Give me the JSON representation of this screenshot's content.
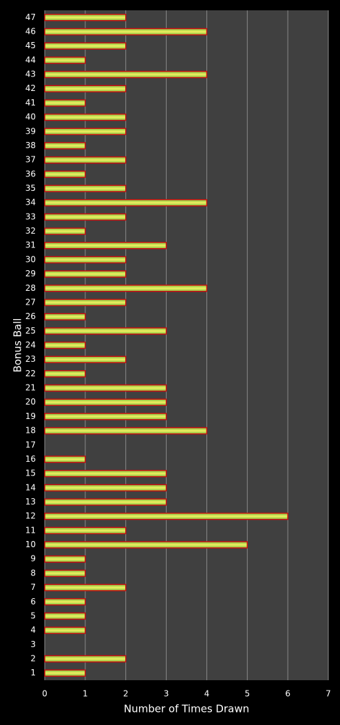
{
  "chart_data": {
    "type": "hbar",
    "x_label": "Number of Times Drawn",
    "y_label": "Bonus Ball",
    "categories": [
      "1",
      "2",
      "3",
      "4",
      "5",
      "6",
      "7",
      "8",
      "9",
      "10",
      "11",
      "12",
      "13",
      "14",
      "15",
      "16",
      "17",
      "18",
      "19",
      "20",
      "21",
      "22",
      "23",
      "24",
      "25",
      "26",
      "27",
      "28",
      "29",
      "30",
      "31",
      "32",
      "33",
      "34",
      "35",
      "36",
      "37",
      "38",
      "39",
      "40",
      "41",
      "42",
      "43",
      "44",
      "45",
      "46",
      "47"
    ],
    "values": [
      1,
      2,
      0,
      1,
      1,
      1,
      2,
      1,
      1,
      5,
      2,
      6,
      3,
      3,
      3,
      1,
      0,
      4,
      3,
      3,
      3,
      1,
      2,
      1,
      3,
      1,
      2,
      4,
      2,
      2,
      3,
      1,
      2,
      4,
      2,
      1,
      2,
      1,
      2,
      2,
      1,
      2,
      4,
      1,
      2,
      4,
      2
    ],
    "color": "#b8d84a",
    "border_color": "#cc1010",
    "xlim": [
      0,
      7
    ],
    "xticks": [
      0,
      1,
      2,
      3,
      4,
      5,
      6,
      7
    ],
    "grid": true
  }
}
